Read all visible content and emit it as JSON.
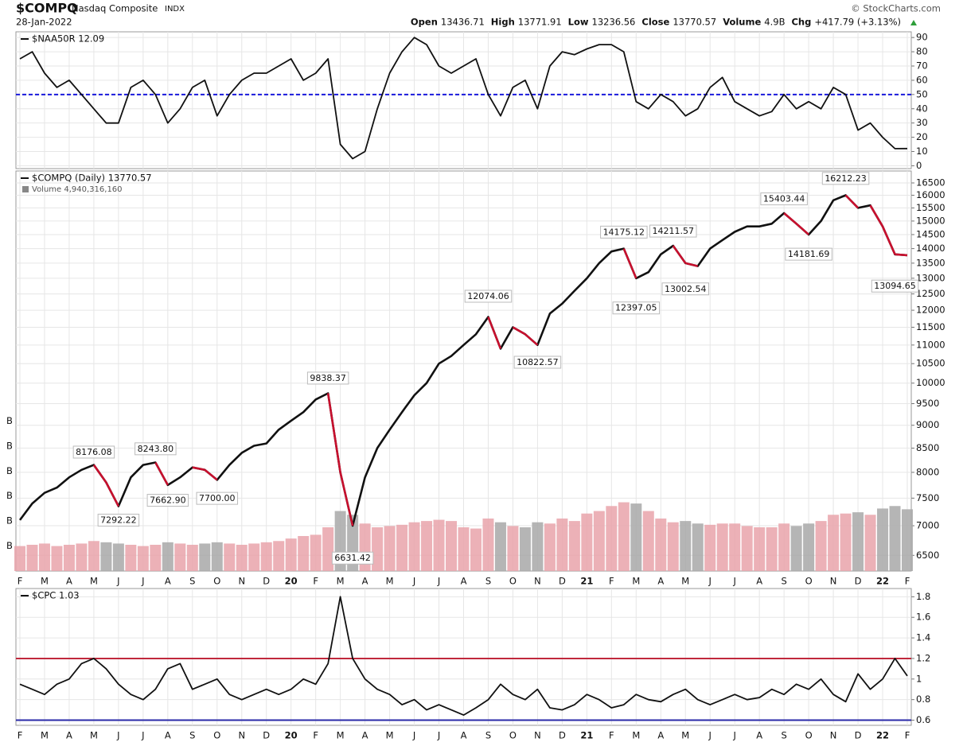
{
  "header": {
    "symbol": "$COMPQ",
    "name": "Nasdaq Composite",
    "exchange": "INDX",
    "date": "28-Jan-2022",
    "copyright": "© StockCharts.com",
    "quote": [
      {
        "label": "Open",
        "value": 13436.71
      },
      {
        "label": "High",
        "value": 13771.91
      },
      {
        "label": "Low",
        "value": 13236.56
      },
      {
        "label": "Close",
        "value": 13770.57
      },
      {
        "label": "Volume",
        "value": "4.9B"
      },
      {
        "label": "Chg",
        "value": "+417.79 (+3.13%)"
      }
    ]
  },
  "chart_data": [
    {
      "type": "line",
      "legend": "$NAA50R 12.09",
      "ylim": [
        -2,
        94
      ],
      "yticks": [
        0,
        10,
        20,
        30,
        40,
        50,
        60,
        70,
        80,
        90
      ],
      "grid": true,
      "hlines": [
        {
          "value": 50,
          "color": "#1a1adc",
          "dashed": true
        }
      ],
      "series": [
        {
          "name": "$NAA50R",
          "color": "#111111",
          "values": [
            75,
            80,
            65,
            55,
            60,
            50,
            40,
            30,
            30,
            55,
            60,
            50,
            30,
            40,
            55,
            60,
            35,
            50,
            60,
            65,
            65,
            70,
            75,
            60,
            65,
            75,
            15,
            5,
            10,
            40,
            65,
            80,
            90,
            85,
            70,
            65,
            70,
            75,
            50,
            35,
            55,
            60,
            40,
            70,
            80,
            78,
            82,
            85,
            85,
            80,
            45,
            40,
            50,
            45,
            35,
            40,
            55,
            62,
            45,
            40,
            35,
            38,
            50,
            40,
            45,
            40,
            55,
            50,
            25,
            30,
            20,
            12,
            12.09
          ]
        }
      ]
    },
    {
      "type": "line",
      "legend": "$COMPQ (Daily) 13770.57",
      "log": true,
      "ylim": [
        6250,
        17000
      ],
      "yticks": [
        6500,
        7000,
        7500,
        8000,
        8500,
        9000,
        9500,
        10000,
        10500,
        11000,
        11500,
        12000,
        12500,
        13000,
        13500,
        14000,
        14500,
        15000,
        15500,
        16000,
        16500
      ],
      "grid": true,
      "down_color": "#c8102e",
      "series": [
        {
          "name": "$COMPQ",
          "color": "#111111",
          "values": [
            7100,
            7400,
            7600,
            7700,
            7900,
            8050,
            8150,
            7800,
            7350,
            7900,
            8150,
            8200,
            7750,
            7900,
            8100,
            8050,
            7850,
            8150,
            8400,
            8550,
            8600,
            8900,
            9100,
            9300,
            9600,
            9750,
            8000,
            7000,
            7900,
            8500,
            8900,
            9300,
            9700,
            10000,
            10500,
            10700,
            11000,
            11300,
            11800,
            10900,
            11500,
            11300,
            11000,
            11900,
            12200,
            12600,
            13000,
            13500,
            13900,
            14000,
            13000,
            13200,
            13800,
            14100,
            13500,
            13400,
            14000,
            14300,
            14600,
            14800,
            14800,
            14900,
            15300,
            14900,
            14500,
            15000,
            15800,
            16000,
            15500,
            15600,
            14800,
            13800,
            13770.57
          ]
        }
      ],
      "volume": {
        "legend": "Volume 4,940,316,160",
        "ylim": [
          0,
          32
        ],
        "yticks": [
          {
            "value": 2,
            "label": "B"
          },
          {
            "value": 4,
            "label": "B"
          },
          {
            "value": 6,
            "label": "B"
          },
          {
            "value": 8,
            "label": "B"
          },
          {
            "value": 10,
            "label": "B"
          },
          {
            "value": 12,
            "label": "B"
          }
        ],
        "up_color": "#e9a3aa",
        "down_color": "#a8a8a8",
        "values": [
          2.0,
          2.1,
          2.2,
          2.0,
          2.1,
          2.2,
          2.4,
          2.3,
          2.2,
          2.1,
          2.0,
          2.1,
          2.3,
          2.2,
          2.1,
          2.2,
          2.3,
          2.2,
          2.1,
          2.2,
          2.3,
          2.4,
          2.6,
          2.8,
          2.9,
          3.5,
          4.8,
          4.5,
          3.8,
          3.5,
          3.6,
          3.7,
          3.9,
          4.0,
          4.1,
          4.0,
          3.5,
          3.4,
          4.2,
          3.9,
          3.6,
          3.5,
          3.9,
          3.8,
          4.2,
          4.0,
          4.6,
          4.8,
          5.2,
          5.5,
          5.4,
          4.8,
          4.2,
          3.9,
          4.0,
          3.8,
          3.7,
          3.8,
          3.8,
          3.6,
          3.5,
          3.5,
          3.8,
          3.6,
          3.8,
          4.0,
          4.5,
          4.6,
          4.7,
          4.5,
          5.0,
          5.2,
          4.94
        ]
      },
      "annotations": [
        {
          "x": 6,
          "value": 8176.08
        },
        {
          "x": 8,
          "value": 7292.22
        },
        {
          "x": 12,
          "value": 7662.9,
          "label": "7662.90"
        },
        {
          "x": 11,
          "value": 8243.8,
          "label": "8243.80"
        },
        {
          "x": 16,
          "value": 7700,
          "label": "7700.00"
        },
        {
          "x": 25,
          "value": 9838.37
        },
        {
          "x": 27,
          "value": 6631.42
        },
        {
          "x": 38,
          "value": 12074.06
        },
        {
          "x": 42,
          "value": 10822.57
        },
        {
          "x": 49,
          "value": 14175.12
        },
        {
          "x": 50,
          "value": 12397.05
        },
        {
          "x": 53,
          "value": 14211.57
        },
        {
          "x": 54,
          "value": 13002.54
        },
        {
          "x": 62,
          "value": 15403.44
        },
        {
          "x": 64,
          "value": 14181.69
        },
        {
          "x": 67,
          "value": 16212.23
        },
        {
          "x": 71,
          "value": 13094.65
        }
      ],
      "xticks": [
        {
          "value": 0,
          "label": "F"
        },
        {
          "value": 2,
          "label": "M"
        },
        {
          "value": 4,
          "label": "A"
        },
        {
          "value": 6,
          "label": "M"
        },
        {
          "value": 8,
          "label": "J"
        },
        {
          "value": 10,
          "label": "J"
        },
        {
          "value": 12,
          "label": "A"
        },
        {
          "value": 14,
          "label": "S"
        },
        {
          "value": 16,
          "label": "O"
        },
        {
          "value": 18,
          "label": "N"
        },
        {
          "value": 20,
          "label": "D"
        },
        {
          "value": 22,
          "label": "20"
        },
        {
          "value": 24,
          "label": "F"
        },
        {
          "value": 26,
          "label": "M"
        },
        {
          "value": 28,
          "label": "A"
        },
        {
          "value": 30,
          "label": "M"
        },
        {
          "value": 32,
          "label": "J"
        },
        {
          "value": 34,
          "label": "J"
        },
        {
          "value": 36,
          "label": "A"
        },
        {
          "value": 38,
          "label": "S"
        },
        {
          "value": 40,
          "label": "O"
        },
        {
          "value": 42,
          "label": "N"
        },
        {
          "value": 44,
          "label": "D"
        },
        {
          "value": 46,
          "label": "21"
        },
        {
          "value": 48,
          "label": "F"
        },
        {
          "value": 50,
          "label": "M"
        },
        {
          "value": 52,
          "label": "A"
        },
        {
          "value": 54,
          "label": "M"
        },
        {
          "value": 56,
          "label": "J"
        },
        {
          "value": 58,
          "label": "J"
        },
        {
          "value": 60,
          "label": "A"
        },
        {
          "value": 62,
          "label": "S"
        },
        {
          "value": 64,
          "label": "O"
        },
        {
          "value": 66,
          "label": "N"
        },
        {
          "value": 68,
          "label": "D"
        },
        {
          "value": 70,
          "label": "22"
        },
        {
          "value": 72,
          "label": "F"
        }
      ]
    },
    {
      "type": "line",
      "legend": "$CPC 1.03",
      "ylim": [
        0.55,
        1.88
      ],
      "yticks": [
        0.6,
        0.8,
        1.0,
        1.2,
        1.4,
        1.6,
        1.8
      ],
      "grid": true,
      "hlines": [
        {
          "value": 1.2,
          "color": "#c0283c"
        },
        {
          "value": 0.6,
          "color": "#2a2aa8"
        }
      ],
      "series": [
        {
          "name": "$CPC",
          "color": "#111111",
          "values": [
            0.95,
            0.9,
            0.85,
            0.95,
            1.0,
            1.15,
            1.2,
            1.1,
            0.95,
            0.85,
            0.8,
            0.9,
            1.1,
            1.15,
            0.9,
            0.95,
            1.0,
            0.85,
            0.8,
            0.85,
            0.9,
            0.85,
            0.9,
            1.0,
            0.95,
            1.15,
            1.8,
            1.2,
            1.0,
            0.9,
            0.85,
            0.75,
            0.8,
            0.7,
            0.75,
            0.7,
            0.65,
            0.72,
            0.8,
            0.95,
            0.85,
            0.8,
            0.9,
            0.72,
            0.7,
            0.75,
            0.85,
            0.8,
            0.72,
            0.75,
            0.85,
            0.8,
            0.78,
            0.85,
            0.9,
            0.8,
            0.75,
            0.8,
            0.85,
            0.8,
            0.82,
            0.9,
            0.85,
            0.95,
            0.9,
            1.0,
            0.85,
            0.78,
            1.05,
            0.9,
            1.0,
            1.2,
            1.03
          ]
        }
      ],
      "xticks": [
        {
          "value": 0,
          "label": "F"
        },
        {
          "value": 2,
          "label": "M"
        },
        {
          "value": 4,
          "label": "A"
        },
        {
          "value": 6,
          "label": "M"
        },
        {
          "value": 8,
          "label": "J"
        },
        {
          "value": 10,
          "label": "J"
        },
        {
          "value": 12,
          "label": "A"
        },
        {
          "value": 14,
          "label": "S"
        },
        {
          "value": 16,
          "label": "O"
        },
        {
          "value": 18,
          "label": "N"
        },
        {
          "value": 20,
          "label": "D"
        },
        {
          "value": 22,
          "label": "20"
        },
        {
          "value": 24,
          "label": "F"
        },
        {
          "value": 26,
          "label": "M"
        },
        {
          "value": 28,
          "label": "A"
        },
        {
          "value": 30,
          "label": "M"
        },
        {
          "value": 32,
          "label": "J"
        },
        {
          "value": 34,
          "label": "J"
        },
        {
          "value": 36,
          "label": "A"
        },
        {
          "value": 38,
          "label": "S"
        },
        {
          "value": 40,
          "label": "O"
        },
        {
          "value": 42,
          "label": "N"
        },
        {
          "value": 44,
          "label": "D"
        },
        {
          "value": 46,
          "label": "21"
        },
        {
          "value": 48,
          "label": "F"
        },
        {
          "value": 50,
          "label": "M"
        },
        {
          "value": 52,
          "label": "A"
        },
        {
          "value": 54,
          "label": "M"
        },
        {
          "value": 56,
          "label": "J"
        },
        {
          "value": 58,
          "label": "J"
        },
        {
          "value": 60,
          "label": "A"
        },
        {
          "value": 62,
          "label": "S"
        },
        {
          "value": 64,
          "label": "O"
        },
        {
          "value": 66,
          "label": "N"
        },
        {
          "value": 68,
          "label": "D"
        },
        {
          "value": 70,
          "label": "22"
        },
        {
          "value": 72,
          "label": "F"
        }
      ]
    }
  ]
}
